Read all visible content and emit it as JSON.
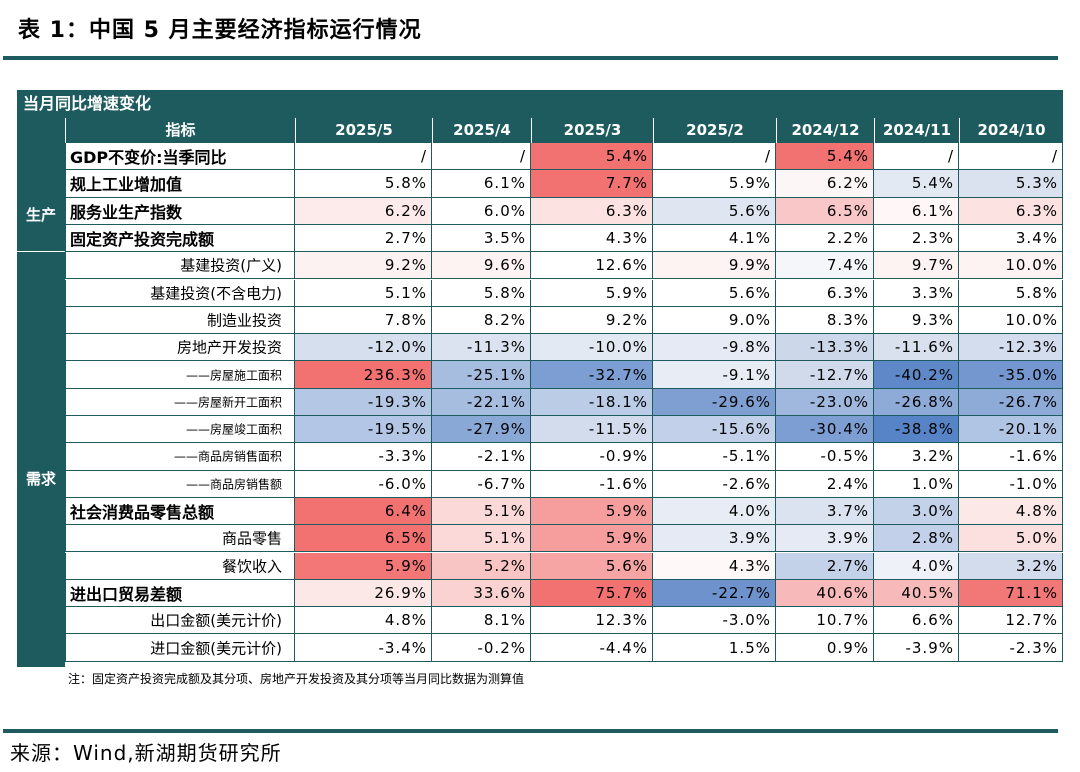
{
  "title": "表 1：中国 5 月主要经济指标运行情况",
  "header_bar": "当月同比增速变化",
  "column_header_label": "指标",
  "columns": [
    "2025/5",
    "2025/4",
    "2025/3",
    "2025/2",
    "2024/12",
    "2024/11",
    "2024/10"
  ],
  "groups": [
    {
      "label": "生产"
    },
    {
      "label": "需求"
    }
  ],
  "rows": [
    {
      "name": "GDP不变价:当季同比",
      "style": "bold",
      "values": [
        "/",
        "/",
        "5.4%",
        "/",
        "5.4%",
        "/",
        "/"
      ],
      "colors": [
        "#ffffff",
        "#ffffff",
        "#f27171",
        "#ffffff",
        "#f27171",
        "#ffffff",
        "#ffffff"
      ]
    },
    {
      "name": "规上工业增加值",
      "style": "bold",
      "values": [
        "5.8%",
        "6.1%",
        "7.7%",
        "5.9%",
        "6.2%",
        "5.4%",
        "5.3%"
      ],
      "colors": [
        "#ffffff",
        "#ffffff",
        "#f27171",
        "#ffffff",
        "#fdf6f6",
        "#e3e9f3",
        "#dae2f0"
      ]
    },
    {
      "name": "服务业生产指数",
      "style": "bold",
      "values": [
        "6.2%",
        "6.0%",
        "6.3%",
        "5.6%",
        "6.5%",
        "6.1%",
        "6.3%"
      ],
      "colors": [
        "#fdeaea",
        "#ffffff",
        "#fde2e2",
        "#dfe6f2",
        "#f9c7c7",
        "#fff7f7",
        "#fde2e2"
      ]
    },
    {
      "name": "固定资产投资完成额",
      "style": "bold",
      "values": [
        "2.7%",
        "3.5%",
        "4.3%",
        "4.1%",
        "2.2%",
        "2.3%",
        "3.4%"
      ],
      "colors": [
        "#ffffff",
        "#ffffff",
        "#ffffff",
        "#ffffff",
        "#ffffff",
        "#ffffff",
        "#ffffff"
      ]
    },
    {
      "name": "基建投资(广义)",
      "style": "sub1",
      "values": [
        "9.2%",
        "9.6%",
        "12.6%",
        "9.9%",
        "7.4%",
        "9.7%",
        "10.0%"
      ],
      "colors": [
        "#fdf2f2",
        "#fdf3f3",
        "#ffffff",
        "#fdf3f3",
        "#f4f6fa",
        "#fdf3f3",
        "#fdf3f3"
      ]
    },
    {
      "name": "基建投资(不含电力)",
      "style": "sub1",
      "values": [
        "5.1%",
        "5.8%",
        "5.9%",
        "5.6%",
        "6.3%",
        "3.3%",
        "5.8%"
      ],
      "colors": [
        "#ffffff",
        "#ffffff",
        "#ffffff",
        "#ffffff",
        "#ffffff",
        "#ffffff",
        "#ffffff"
      ]
    },
    {
      "name": "制造业投资",
      "style": "sub1",
      "values": [
        "7.8%",
        "8.2%",
        "9.2%",
        "9.0%",
        "8.3%",
        "9.3%",
        "10.0%"
      ],
      "colors": [
        "#ffffff",
        "#ffffff",
        "#ffffff",
        "#ffffff",
        "#ffffff",
        "#ffffff",
        "#ffffff"
      ]
    },
    {
      "name": "房地产开发投资",
      "style": "sub1",
      "values": [
        "-12.0%",
        "-11.3%",
        "-10.0%",
        "-9.8%",
        "-13.3%",
        "-11.6%",
        "-12.3%"
      ],
      "colors": [
        "#d6dfee",
        "#dbe3f0",
        "#e3e9f3",
        "#e5eaf4",
        "#ccd7ea",
        "#d9e1ef",
        "#d4ddee"
      ]
    },
    {
      "name": "——房屋施工面积",
      "style": "sub2",
      "values": [
        "236.3%",
        "-25.1%",
        "-32.7%",
        "-9.1%",
        "-12.7%",
        "-40.2%",
        "-35.0%"
      ],
      "colors": [
        "#f27171",
        "#a6bde0",
        "#7d9ed2",
        "#e8edf5",
        "#d0daeb",
        "#5e88c8",
        "#7597cf"
      ]
    },
    {
      "name": "——房屋新开工面积",
      "style": "sub2",
      "values": [
        "-19.3%",
        "-22.1%",
        "-18.1%",
        "-29.6%",
        "-23.0%",
        "-26.8%",
        "-26.7%"
      ],
      "colors": [
        "#b4c7e5",
        "#a6bde0",
        "#bbcce7",
        "#7f9fd2",
        "#a0b8de",
        "#8eabd8",
        "#8eabd8"
      ]
    },
    {
      "name": "——房屋竣工面积",
      "style": "sub2",
      "values": [
        "-19.5%",
        "-27.9%",
        "-11.5%",
        "-15.6%",
        "-30.4%",
        "-38.8%",
        "-20.1%"
      ],
      "colors": [
        "#b3c6e5",
        "#8aa8d6",
        "#d3dced",
        "#c2d1e9",
        "#7d9ed2",
        "#5784c6",
        "#b0c4e4"
      ]
    },
    {
      "name": "——商品房销售面积",
      "style": "sub2",
      "values": [
        "-3.3%",
        "-2.1%",
        "-0.9%",
        "-5.1%",
        "-0.5%",
        "3.2%",
        "-1.6%"
      ],
      "colors": [
        "#ffffff",
        "#ffffff",
        "#ffffff",
        "#ffffff",
        "#ffffff",
        "#ffffff",
        "#ffffff"
      ]
    },
    {
      "name": "——商品房销售额",
      "style": "sub2",
      "values": [
        "-6.0%",
        "-6.7%",
        "-1.6%",
        "-2.6%",
        "2.4%",
        "1.0%",
        "-1.0%"
      ],
      "colors": [
        "#ffffff",
        "#ffffff",
        "#ffffff",
        "#ffffff",
        "#ffffff",
        "#ffffff",
        "#ffffff"
      ]
    },
    {
      "name": "社会消费品零售总额",
      "style": "bold",
      "values": [
        "6.4%",
        "5.1%",
        "5.9%",
        "4.0%",
        "3.7%",
        "3.0%",
        "4.8%"
      ],
      "colors": [
        "#f27171",
        "#fbd9d9",
        "#f69e9e",
        "#e7ecf5",
        "#dbe3f0",
        "#c4d2e9",
        "#fde8e8"
      ]
    },
    {
      "name": "商品零售",
      "style": "sub1",
      "values": [
        "6.5%",
        "5.1%",
        "5.9%",
        "3.9%",
        "3.9%",
        "2.8%",
        "5.0%"
      ],
      "colors": [
        "#f27171",
        "#fbd9d9",
        "#f69e9e",
        "#e5eaf4",
        "#e5eaf4",
        "#c2d1e9",
        "#fce0e0"
      ]
    },
    {
      "name": "餐饮收入",
      "style": "sub1",
      "values": [
        "5.9%",
        "5.2%",
        "5.6%",
        "4.3%",
        "2.7%",
        "4.0%",
        "3.2%"
      ],
      "colors": [
        "#f37777",
        "#f9c4c4",
        "#f6a4a4",
        "#fff8f8",
        "#c4d2e9",
        "#eef2f8",
        "#d3dced"
      ]
    },
    {
      "name": "进出口贸易差额",
      "style": "bold",
      "values": [
        "26.9%",
        "33.6%",
        "75.7%",
        "-22.7%",
        "40.6%",
        "40.5%",
        "71.1%"
      ],
      "colors": [
        "#fde8e8",
        "#fbd2d2",
        "#f27171",
        "#6e92cc",
        "#f7b9b9",
        "#f7b9b9",
        "#f27777"
      ]
    },
    {
      "name": "出口金额(美元计价)",
      "style": "sub1",
      "values": [
        "4.8%",
        "8.1%",
        "12.3%",
        "-3.0%",
        "10.7%",
        "6.6%",
        "12.7%"
      ],
      "colors": [
        "#ffffff",
        "#ffffff",
        "#ffffff",
        "#ffffff",
        "#ffffff",
        "#ffffff",
        "#ffffff"
      ]
    },
    {
      "name": "进口金额(美元计价)",
      "style": "sub1",
      "values": [
        "-3.4%",
        "-0.2%",
        "-4.4%",
        "1.5%",
        "0.9%",
        "-3.9%",
        "-2.3%"
      ],
      "colors": [
        "#ffffff",
        "#ffffff",
        "#ffffff",
        "#ffffff",
        "#ffffff",
        "#ffffff",
        "#ffffff"
      ]
    }
  ],
  "note": "注：固定资产投资完成额及其分项、房地产开发投资及其分项等当月同比数据为测算值",
  "source": "来源：Wind,新湖期货研究所"
}
